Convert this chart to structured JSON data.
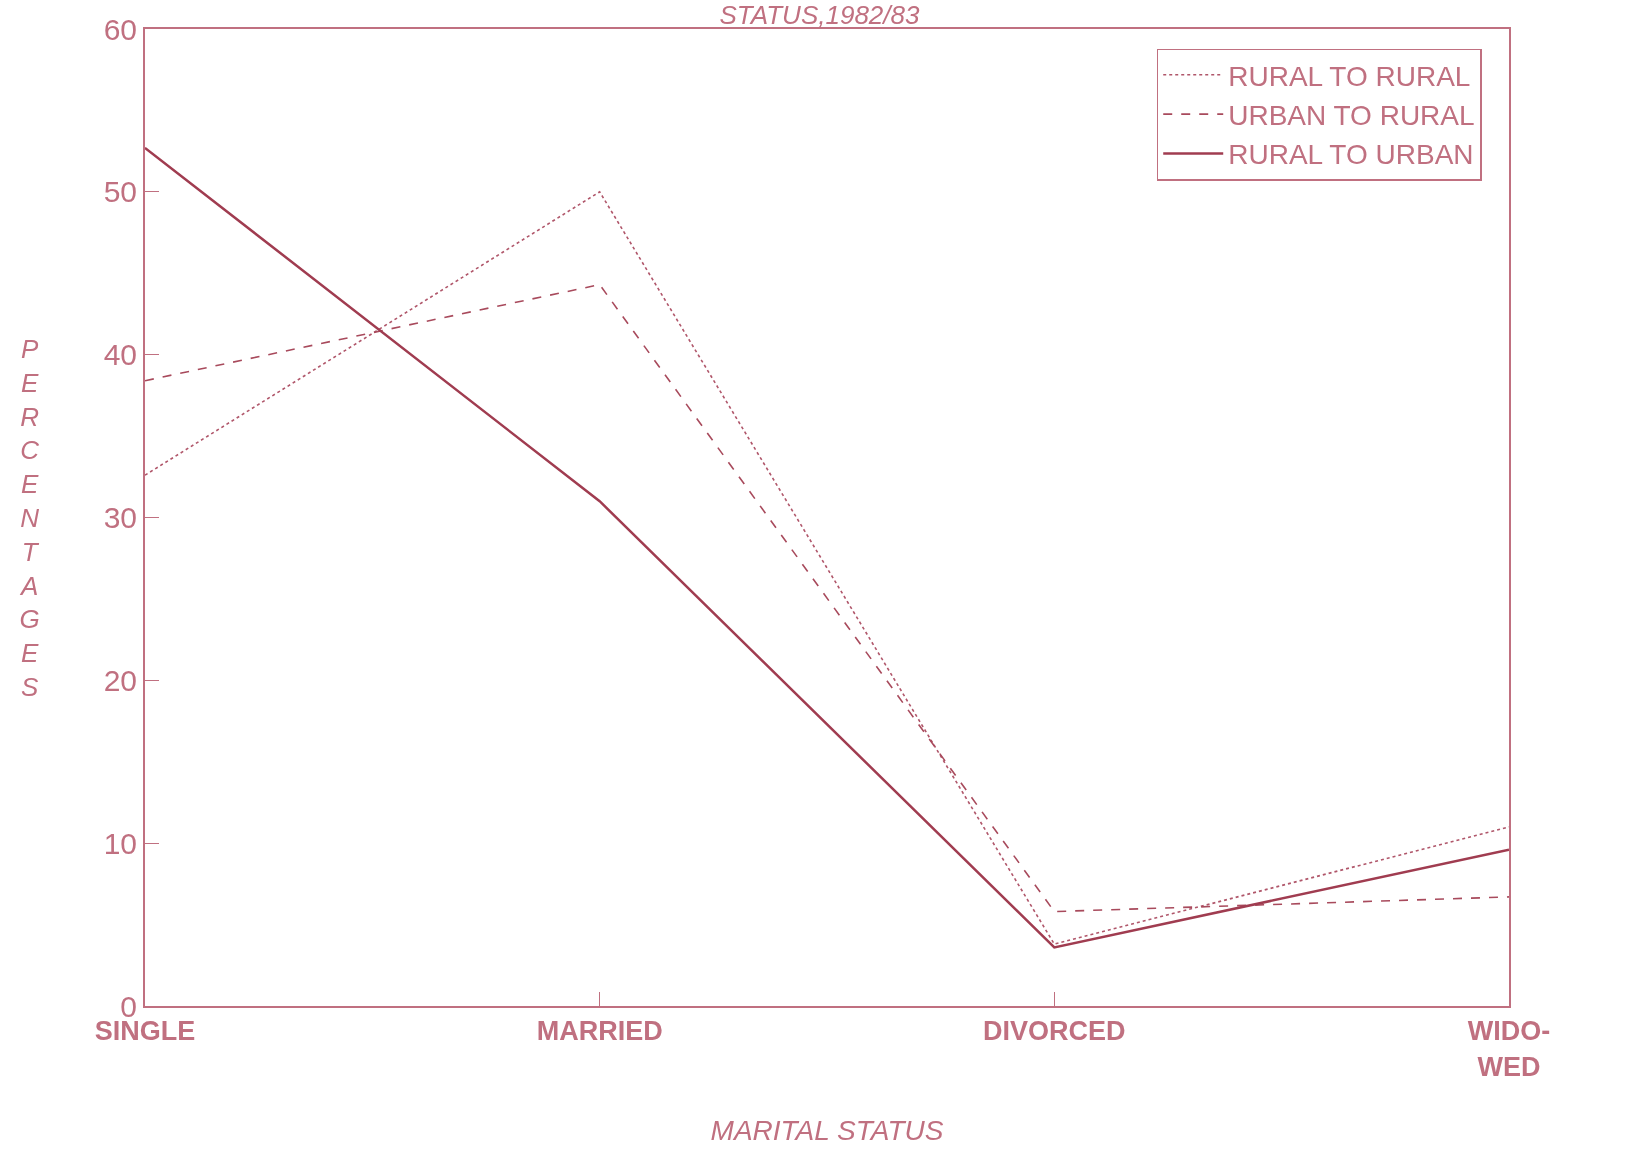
{
  "chart_data": {
    "type": "line",
    "title": "STATUS,1982/83",
    "xlabel": "MARITAL STATUS",
    "ylabel": "PERCENTAGES",
    "categories": [
      "SINGLE",
      "MARRIED",
      "DIVORCED",
      "WIDO-\nWED"
    ],
    "series": [
      {
        "name": "RURAL TO RURAL",
        "color": "#b0566a",
        "line_style": "dotted",
        "values": [
          32.6,
          50,
          3.8,
          11
        ]
      },
      {
        "name": "URBAN TO RURAL",
        "color": "#a84a5c",
        "line_style": "dashed",
        "values": [
          38.4,
          44.3,
          5.8,
          6.7
        ]
      },
      {
        "name": "RURAL TO URBAN",
        "color": "#a03c50",
        "line_style": "solid",
        "values": [
          52.7,
          31,
          3.6,
          9.6
        ]
      }
    ],
    "ylim": [
      0,
      60
    ],
    "yticks": [
      0,
      10,
      20,
      30,
      40,
      50,
      60
    ],
    "grid": false,
    "legend": "top right",
    "marker": "none"
  }
}
